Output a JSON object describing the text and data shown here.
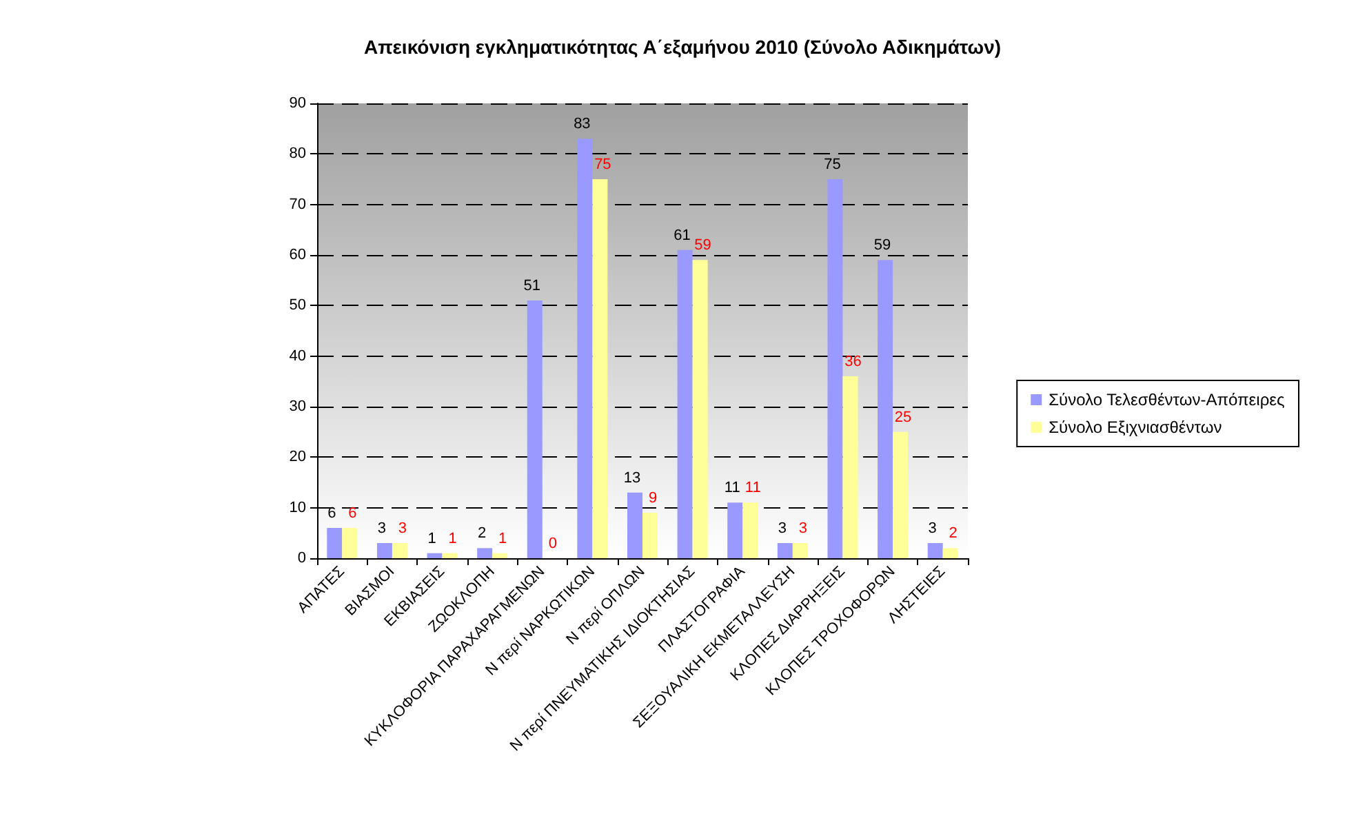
{
  "chart_data": {
    "type": "bar",
    "title": "Απεικόνιση εγκληματικότητας Α΄εξαμήνου 2010 (Σύνολο Αδικημάτων)",
    "categories": [
      "ΑΠΑΤΕΣ",
      "ΒΙΑΣΜΟΙ",
      "ΕΚΒΙΑΣΕΙΣ",
      "ΖΩΟΚΛΟΠΗ",
      "ΚΥΚΛΟΦΟΡΙΑ ΠΑΡΑΧΑΡΑΓΜΕΝΩΝ",
      "Ν περί ΝΑΡΚΩΤΙΚΩΝ",
      "Ν περί ΟΠΛΩΝ",
      "Ν περί ΠΝΕΥΜΑΤΙΚΗΣ ΙΔΙΟΚΤΗΣΙΑΣ",
      "ΠΛΑΣΤΟΓΡΑΦΙΑ",
      "ΣΕΞΟΥΑΛΙΚΗ ΕΚΜΕΤΑΛΛΕΥΣΗ",
      "ΚΛΟΠΕΣ ΔΙΑΡΡΗΞΕΙΣ",
      "ΚΛΟΠΕΣ ΤΡΟΧΟΦΟΡΩΝ",
      "ΛΗΣΤΕΙΕΣ"
    ],
    "series": [
      {
        "name": "Σύνολο Τελεσθέντων-Απόπειρες",
        "color": "#9999ff",
        "values": [
          6,
          3,
          1,
          2,
          51,
          83,
          13,
          61,
          11,
          3,
          75,
          59,
          3
        ]
      },
      {
        "name": "Σύνολο Εξιχνιασθέντων",
        "color": "#ffff99",
        "values": [
          6,
          3,
          1,
          1,
          0,
          75,
          9,
          59,
          11,
          3,
          36,
          25,
          2
        ]
      }
    ],
    "ylim": [
      0,
      90
    ],
    "yticks": [
      0,
      10,
      20,
      30,
      40,
      50,
      60,
      70,
      80,
      90
    ],
    "grid": "y",
    "legend": "right",
    "data_labels": true
  }
}
